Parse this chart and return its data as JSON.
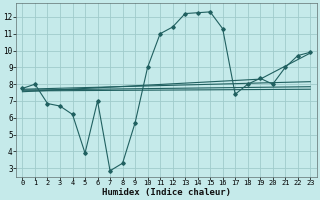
{
  "xlabel": "Humidex (Indice chaleur)",
  "bg_color": "#c5eaea",
  "grid_color": "#a0cccc",
  "line_color": "#206060",
  "xlim": [
    -0.5,
    23.5
  ],
  "ylim": [
    2.5,
    12.8
  ],
  "xticks": [
    0,
    1,
    2,
    3,
    4,
    5,
    6,
    7,
    8,
    9,
    10,
    11,
    12,
    13,
    14,
    15,
    16,
    17,
    18,
    19,
    20,
    21,
    22,
    23
  ],
  "yticks": [
    3,
    4,
    5,
    6,
    7,
    8,
    9,
    10,
    11,
    12
  ],
  "main_x": [
    0,
    1,
    2,
    3,
    4,
    5,
    6,
    7,
    8,
    9,
    10,
    11,
    12,
    13,
    14,
    15,
    16,
    17,
    18,
    19,
    20,
    21,
    22,
    23
  ],
  "main_y": [
    7.75,
    8.0,
    6.85,
    6.7,
    6.2,
    3.9,
    7.0,
    2.85,
    3.3,
    5.7,
    9.0,
    11.0,
    11.4,
    12.2,
    12.25,
    12.3,
    11.3,
    7.4,
    8.0,
    8.35,
    8.0,
    9.0,
    9.7,
    9.9
  ],
  "trend_lines": [
    {
      "x": [
        0,
        23
      ],
      "y": [
        7.7,
        8.15
      ]
    },
    {
      "x": [
        0,
        23
      ],
      "y": [
        7.65,
        7.85
      ]
    },
    {
      "x": [
        0,
        23
      ],
      "y": [
        7.6,
        7.7
      ]
    },
    {
      "x": [
        0,
        19,
        23
      ],
      "y": [
        7.55,
        8.3,
        9.85
      ]
    }
  ]
}
